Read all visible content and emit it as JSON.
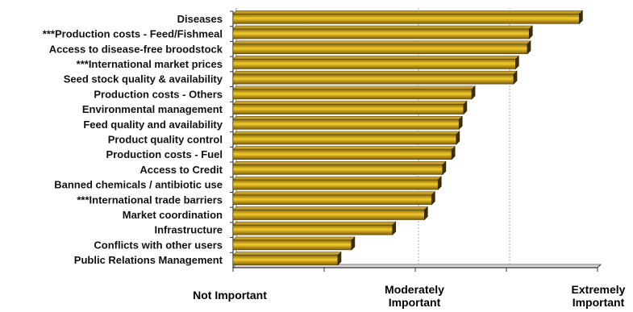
{
  "chart_data": {
    "type": "bar",
    "orientation": "horizontal",
    "categories": [
      "Diseases",
      "***Production costs - Feed/Fishmeal",
      "Access to disease-free broodstock",
      "***International market prices",
      "Seed stock quality & availability",
      "Production costs - Others",
      "Environmental management",
      "Feed quality and availability",
      "Product quality control",
      "Production costs - Fuel",
      "Access to Credit",
      "Banned chemicals / antibiotic use",
      "***International trade barriers",
      "Market coordination",
      "Infrastructure",
      "Conflicts with other users",
      "Public Relations Management"
    ],
    "values": [
      4.8,
      4.25,
      4.23,
      4.1,
      4.08,
      3.62,
      3.53,
      3.48,
      3.45,
      3.4,
      3.3,
      3.25,
      3.18,
      3.1,
      2.75,
      2.3,
      2.15
    ],
    "xlim": [
      1,
      5
    ],
    "x_tick_labels": [
      {
        "value": 1,
        "lines": [
          "Not Important"
        ]
      },
      {
        "value": 3,
        "lines": [
          "Moderately",
          "Important"
        ]
      },
      {
        "value": 5,
        "lines": [
          "Extremely",
          "Important"
        ]
      }
    ],
    "gridlines_at": [
      3,
      4
    ],
    "grid": true,
    "legend": "none",
    "bar_color": "#e8b820",
    "title": "",
    "xlabel": "",
    "ylabel": ""
  }
}
